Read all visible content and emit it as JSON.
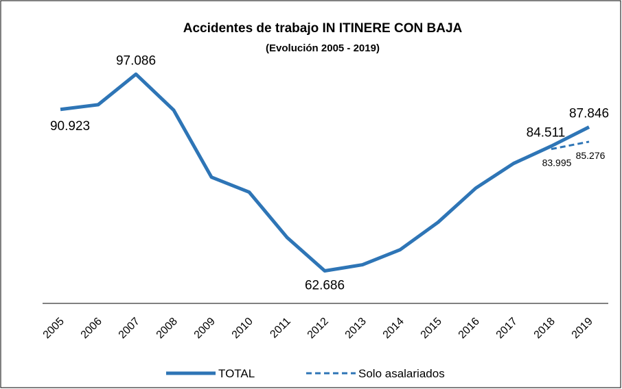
{
  "chart_data": {
    "type": "line",
    "title": "Accidentes de trabajo IN ITINERE CON BAJA",
    "subtitle": "(Evolución 2005 - 2019)",
    "categories": [
      "2005",
      "2006",
      "2007",
      "2008",
      "2009",
      "2010",
      "2011",
      "2012",
      "2013",
      "2014",
      "2015",
      "2016",
      "2017",
      "2018",
      "2019"
    ],
    "series": [
      {
        "name": "TOTAL",
        "color": "#2e75b6",
        "dash": false,
        "values": [
          90923,
          91750,
          97086,
          90800,
          79080,
          76450,
          68550,
          62686,
          63760,
          66400,
          71180,
          77160,
          81470,
          84511,
          87846
        ],
        "value_labels": [
          "90.923",
          null,
          "97.086",
          null,
          null,
          null,
          null,
          "62.686",
          null,
          null,
          null,
          null,
          null,
          "84.511",
          "87.846"
        ]
      },
      {
        "name": "Solo asalariados",
        "color": "#2e75b6",
        "dash": true,
        "values": [
          null,
          null,
          null,
          null,
          null,
          null,
          null,
          null,
          null,
          null,
          null,
          null,
          null,
          83995,
          85276
        ],
        "value_labels": [
          null,
          null,
          null,
          null,
          null,
          null,
          null,
          null,
          null,
          null,
          null,
          null,
          null,
          "83.995",
          "85.276"
        ]
      }
    ],
    "ylim": [
      57000,
      100000
    ],
    "legend": "bottom"
  }
}
